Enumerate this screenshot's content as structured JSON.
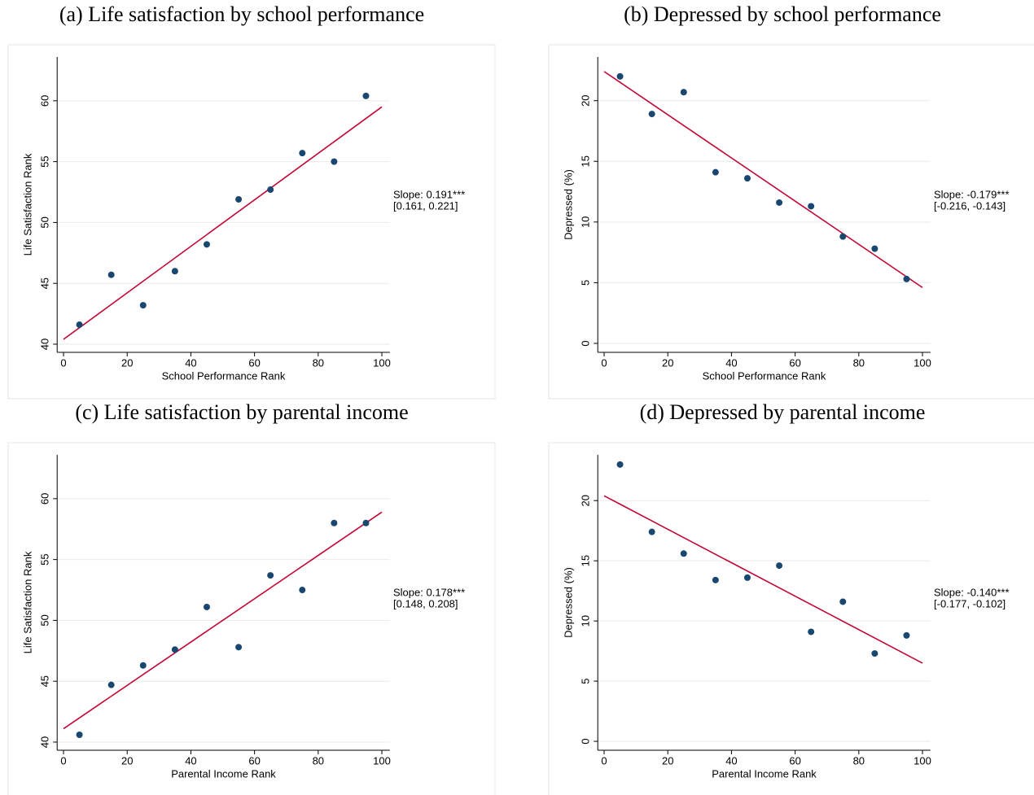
{
  "chart_data": [
    {
      "type": "scatter",
      "title": "(a) Life satisfaction by school performance",
      "x_label": "School Performance Rank",
      "y_label": "Life Satisfaction Rank",
      "annotation": [
        "Slope: 0.191***",
        "[0.161, 0.221]"
      ],
      "x": [
        5,
        15,
        25,
        35,
        45,
        55,
        65,
        75,
        85,
        95
      ],
      "y": [
        41.6,
        45.7,
        43.2,
        46.0,
        48.2,
        51.9,
        52.7,
        55.7,
        55.0,
        60.4
      ],
      "fit": {
        "x": [
          0,
          100
        ],
        "y": [
          40.4,
          59.5
        ]
      },
      "xlim": [
        -2,
        102.5
      ],
      "ylim": [
        39.33,
        63.6
      ],
      "xticks": [
        0,
        20,
        40,
        60,
        80,
        100
      ],
      "yticks": [
        40,
        45,
        50,
        55,
        60
      ],
      "point_color": "#1a476f",
      "line_color": "#c10534",
      "grid": true
    },
    {
      "type": "scatter",
      "title": "(b) Depressed by school performance",
      "x_label": "School Performance Rank",
      "y_label": "Depressed (%)",
      "annotation": [
        "Slope: -0.179***",
        "[-0.216, -0.143]"
      ],
      "x": [
        5,
        15,
        25,
        35,
        45,
        55,
        65,
        75,
        85,
        95
      ],
      "y": [
        22.0,
        18.9,
        20.7,
        14.1,
        13.6,
        11.6,
        11.3,
        8.8,
        7.8,
        5.3
      ],
      "fit": {
        "x": [
          0,
          100
        ],
        "y": [
          22.4,
          4.6
        ]
      },
      "xlim": [
        -2,
        102.5
      ],
      "ylim": [
        -0.74,
        23.6
      ],
      "xticks": [
        0,
        20,
        40,
        60,
        80,
        100
      ],
      "yticks": [
        0,
        5,
        10,
        15,
        20
      ],
      "point_color": "#1a476f",
      "line_color": "#c10534",
      "grid": true
    },
    {
      "type": "scatter",
      "title": "(c) Life satisfaction by parental income",
      "x_label": "Parental Income Rank",
      "y_label": "Life Satisfaction Rank",
      "annotation": [
        "Slope: 0.178***",
        "[0.148, 0.208]"
      ],
      "x": [
        5,
        15,
        25,
        35,
        45,
        55,
        65,
        75,
        85,
        95
      ],
      "y": [
        40.6,
        44.7,
        46.3,
        47.6,
        51.1,
        47.8,
        53.7,
        52.5,
        58.0,
        58.0
      ],
      "fit": {
        "x": [
          0,
          100
        ],
        "y": [
          41.1,
          58.9
        ]
      },
      "xlim": [
        -2,
        102.5
      ],
      "ylim": [
        39.33,
        63.6
      ],
      "xticks": [
        0,
        20,
        40,
        60,
        80,
        100
      ],
      "yticks": [
        40,
        45,
        50,
        55,
        60
      ],
      "point_color": "#1a476f",
      "line_color": "#c10534",
      "grid": true
    },
    {
      "type": "scatter",
      "title": "(d) Depressed by parental income",
      "x_label": "Parental Income Rank",
      "y_label": "Depressed (%)",
      "annotation": [
        "Slope: -0.140***",
        "[-0.177, -0.102]"
      ],
      "x": [
        5,
        15,
        25,
        35,
        45,
        55,
        65,
        75,
        85,
        95
      ],
      "y": [
        23.0,
        17.4,
        15.6,
        13.4,
        13.6,
        14.6,
        9.1,
        11.6,
        7.3,
        8.8
      ],
      "fit": {
        "x": [
          0,
          100
        ],
        "y": [
          20.4,
          6.5
        ]
      },
      "xlim": [
        -2,
        102.5
      ],
      "ylim": [
        -0.74,
        23.8
      ],
      "xticks": [
        0,
        20,
        40,
        60,
        80,
        100
      ],
      "yticks": [
        0,
        5,
        10,
        15,
        20
      ],
      "point_color": "#1a476f",
      "line_color": "#c10534",
      "grid": true
    }
  ]
}
